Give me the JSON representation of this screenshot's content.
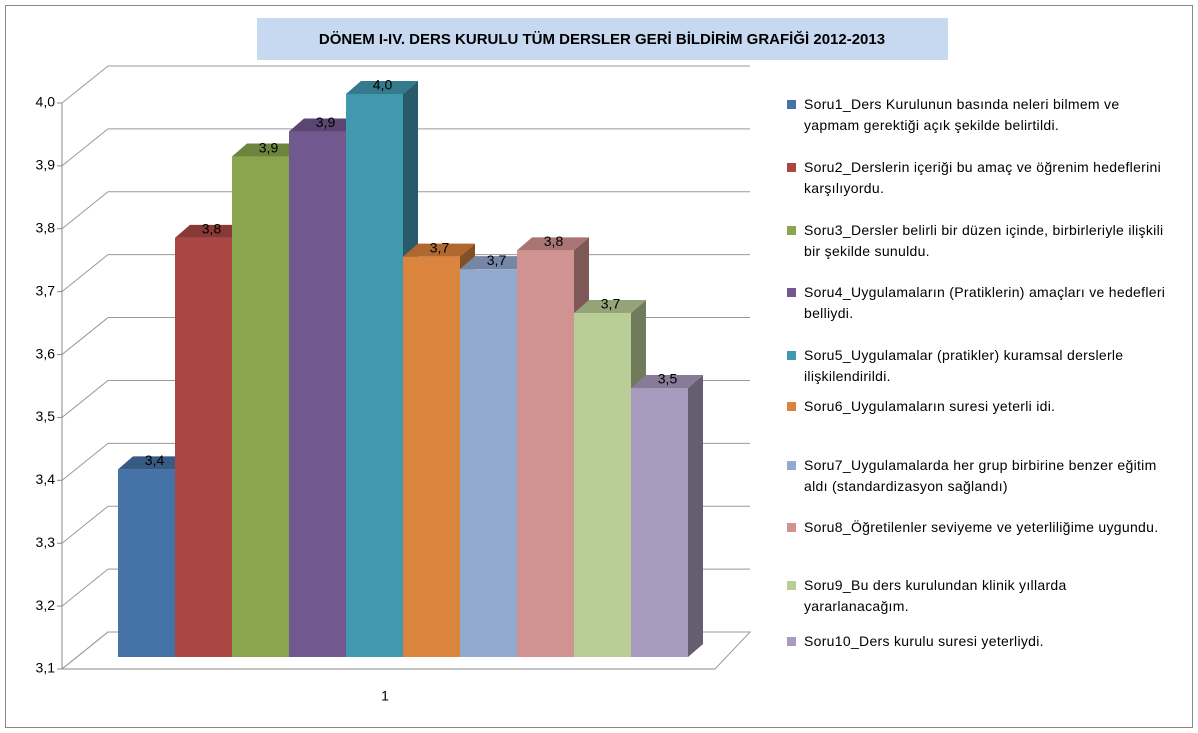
{
  "chart_data": {
    "type": "bar3d",
    "title": "DÖNEM I-IV. DERS KURULU TÜM DERSLER GERİ BİLDİRİM GRAFİĞİ 2012-2013",
    "categories": [
      "1"
    ],
    "ylim": [
      3.1,
      4.0
    ],
    "yticks": [
      {
        "value": 3.1,
        "label": "3,1"
      },
      {
        "value": 3.2,
        "label": "3,2"
      },
      {
        "value": 3.3,
        "label": "3,3"
      },
      {
        "value": 3.4,
        "label": "3,4"
      },
      {
        "value": 3.5,
        "label": "3,5"
      },
      {
        "value": 3.6,
        "label": "3,6"
      },
      {
        "value": 3.7,
        "label": "3,7"
      },
      {
        "value": 3.8,
        "label": "3,8"
      },
      {
        "value": 3.9,
        "label": "3,9"
      },
      {
        "value": 4.0,
        "label": "4,0"
      }
    ],
    "grid": true,
    "legend": "right",
    "series": [
      {
        "name": "Soru1_Ders Kurulunun basında neleri bilmem ve yapmam gerektiği açık şekilde belirtildi.",
        "color": "#4572a7",
        "values": [
          3.4
        ],
        "value_labels": [
          "3,4"
        ]
      },
      {
        "name": "Soru2_Derslerin içeriği bu amaç ve öğrenim hedeflerini karşılıyordu.",
        "color": "#aa4643",
        "values": [
          3.77
        ],
        "value_labels": [
          "3,8"
        ]
      },
      {
        "name": "Soru3_Dersler belirli bir düzen içinde, birbirleriyle ilişkili bir şekilde sunuldu.",
        "color": "#89a54e",
        "values": [
          3.9
        ],
        "value_labels": [
          "3,9"
        ]
      },
      {
        "name": "Soru4_Uygulamaların (Pratiklerin) amaçları ve hedefleri belliydi.",
        "color": "#71588f",
        "values": [
          3.94
        ],
        "value_labels": [
          "3,9"
        ]
      },
      {
        "name": "Soru5_Uygulamalar (pratikler) kuramsal derslerle ilişkilendirildi.",
        "color": "#4198af",
        "values": [
          4.0
        ],
        "value_labels": [
          "4,0"
        ]
      },
      {
        "name": "Soru6_Uygulamaların suresi yeterli idi.",
        "color": "#db843d",
        "values": [
          3.74
        ],
        "value_labels": [
          "3,7"
        ]
      },
      {
        "name": "Soru7_Uygulamalarda her grup birbirine benzer eğitim aldı (standardizasyon sağlandı)",
        "color": "#93a9cf",
        "values": [
          3.72
        ],
        "value_labels": [
          "3,7"
        ]
      },
      {
        "name": "Soru8_Öğretilenler seviyeme ve yeterliliğime uygundu.",
        "color": "#d19392",
        "values": [
          3.75
        ],
        "value_labels": [
          "3,8"
        ]
      },
      {
        "name": "Soru9_Bu ders kurulundan klinik yıllarda yararlanacağım.",
        "color": "#b9cd96",
        "values": [
          3.65
        ],
        "value_labels": [
          "3,7"
        ]
      },
      {
        "name": "Soru10_Ders kurulu suresi yeterliydi.",
        "color": "#a99bbd",
        "values": [
          3.53
        ],
        "value_labels": [
          "3,5"
        ]
      }
    ]
  }
}
